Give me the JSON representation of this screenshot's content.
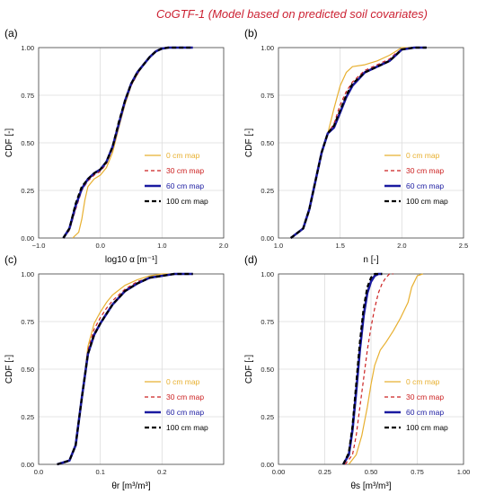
{
  "figure_title": "CoGTF-1 (Model based on predicted soil covariates)",
  "colors": {
    "title": "#cc2233",
    "d0": "#e8b030",
    "d30": "#cc2222",
    "d60": "#1a1aa0",
    "d100": "#000000",
    "grid": "#dcdcdc"
  },
  "legend": [
    "0 cm map",
    "30 cm map",
    "60 cm map",
    "100 cm map"
  ],
  "legend_colors": [
    "#e8b030",
    "#cc2222",
    "#1a1aa0",
    "#000000"
  ],
  "chart_data": [
    {
      "id": "a",
      "panel_label": "(a)",
      "type": "line",
      "xlabel": "log10 α [m⁻¹]",
      "ylabel": "CDF [-]",
      "xlim": [
        -1.0,
        2.0
      ],
      "ylim": [
        0,
        1
      ],
      "xticks": [
        -1.0,
        0.0,
        1.0,
        2.0
      ],
      "xtick_labels": [
        "−1.0",
        "0.0",
        "1.0",
        "2.0"
      ],
      "yticks": [
        0,
        0.25,
        0.5,
        0.75,
        1.0
      ],
      "ytick_labels": [
        "0.00",
        "0.25",
        "0.50",
        "0.75",
        "1.00"
      ],
      "grid": true,
      "legend_position": "bottom-right",
      "series": [
        {
          "name": "0 cm map",
          "x": [
            -0.45,
            -0.35,
            -0.3,
            -0.25,
            -0.2,
            -0.1,
            0.0,
            0.1,
            0.2,
            0.3,
            0.4,
            0.5,
            0.6,
            0.7,
            0.8,
            0.9,
            1.0,
            1.1,
            1.2,
            1.5
          ],
          "y": [
            0,
            0.03,
            0.1,
            0.2,
            0.27,
            0.31,
            0.33,
            0.37,
            0.45,
            0.58,
            0.7,
            0.8,
            0.86,
            0.91,
            0.95,
            0.98,
            0.995,
            1,
            1,
            1
          ]
        },
        {
          "name": "30 cm map",
          "x": [
            -0.6,
            -0.5,
            -0.4,
            -0.3,
            -0.2,
            -0.1,
            0.0,
            0.1,
            0.2,
            0.3,
            0.4,
            0.5,
            0.6,
            0.7,
            0.8,
            0.9,
            1.0,
            1.1,
            1.2,
            1.5
          ],
          "y": [
            0,
            0.04,
            0.15,
            0.25,
            0.3,
            0.33,
            0.35,
            0.39,
            0.47,
            0.6,
            0.71,
            0.8,
            0.86,
            0.91,
            0.95,
            0.98,
            0.995,
            1,
            1,
            1
          ]
        },
        {
          "name": "60 cm map",
          "x": [
            -0.6,
            -0.5,
            -0.4,
            -0.3,
            -0.2,
            -0.1,
            0.0,
            0.1,
            0.2,
            0.3,
            0.4,
            0.5,
            0.6,
            0.7,
            0.8,
            0.9,
            1.0,
            1.1,
            1.2,
            1.5
          ],
          "y": [
            0,
            0.05,
            0.17,
            0.26,
            0.31,
            0.34,
            0.36,
            0.4,
            0.48,
            0.6,
            0.72,
            0.81,
            0.87,
            0.91,
            0.95,
            0.98,
            0.995,
            1,
            1,
            1
          ]
        },
        {
          "name": "100 cm map",
          "x": [
            -0.6,
            -0.5,
            -0.4,
            -0.3,
            -0.2,
            -0.1,
            0.0,
            0.1,
            0.2,
            0.3,
            0.4,
            0.5,
            0.6,
            0.7,
            0.8,
            0.9,
            1.0,
            1.1,
            1.2,
            1.5
          ],
          "y": [
            0,
            0.05,
            0.18,
            0.27,
            0.31,
            0.34,
            0.36,
            0.4,
            0.48,
            0.61,
            0.72,
            0.81,
            0.87,
            0.91,
            0.95,
            0.98,
            0.995,
            1,
            1,
            1
          ]
        }
      ]
    },
    {
      "id": "b",
      "panel_label": "(b)",
      "type": "line",
      "xlabel": "n [-]",
      "ylabel": "CDF [-]",
      "xlim": [
        1.0,
        2.5
      ],
      "ylim": [
        0,
        1
      ],
      "xticks": [
        1.0,
        1.5,
        2.0,
        2.5
      ],
      "xtick_labels": [
        "1.0",
        "1.5",
        "2.0",
        "2.5"
      ],
      "yticks": [
        0,
        0.25,
        0.5,
        0.75,
        1.0
      ],
      "ytick_labels": [
        "0.00",
        "0.25",
        "0.50",
        "0.75",
        "1.00"
      ],
      "grid": true,
      "legend_position": "bottom-right",
      "series": [
        {
          "name": "0 cm map",
          "x": [
            1.1,
            1.2,
            1.25,
            1.3,
            1.35,
            1.4,
            1.45,
            1.5,
            1.55,
            1.6,
            1.7,
            1.8,
            1.9,
            1.95,
            2.0,
            2.1,
            2.2
          ],
          "y": [
            0,
            0.05,
            0.15,
            0.3,
            0.45,
            0.55,
            0.68,
            0.8,
            0.87,
            0.9,
            0.91,
            0.93,
            0.96,
            0.98,
            1,
            1,
            1
          ]
        },
        {
          "name": "30 cm map",
          "x": [
            1.1,
            1.2,
            1.25,
            1.3,
            1.35,
            1.4,
            1.45,
            1.5,
            1.55,
            1.6,
            1.7,
            1.8,
            1.9,
            1.95,
            2.0,
            2.1,
            2.2
          ],
          "y": [
            0,
            0.05,
            0.15,
            0.3,
            0.45,
            0.55,
            0.6,
            0.7,
            0.77,
            0.82,
            0.88,
            0.91,
            0.94,
            0.97,
            0.99,
            1,
            1
          ]
        },
        {
          "name": "60 cm map",
          "x": [
            1.1,
            1.2,
            1.25,
            1.3,
            1.35,
            1.4,
            1.45,
            1.5,
            1.55,
            1.6,
            1.7,
            1.8,
            1.9,
            1.95,
            2.0,
            2.1,
            2.2
          ],
          "y": [
            0,
            0.05,
            0.15,
            0.3,
            0.45,
            0.55,
            0.58,
            0.66,
            0.74,
            0.8,
            0.87,
            0.9,
            0.93,
            0.96,
            0.99,
            1,
            1
          ]
        },
        {
          "name": "100 cm map",
          "x": [
            1.1,
            1.2,
            1.25,
            1.3,
            1.35,
            1.4,
            1.45,
            1.5,
            1.55,
            1.6,
            1.7,
            1.8,
            1.9,
            1.95,
            2.0,
            2.1,
            2.2
          ],
          "y": [
            0,
            0.05,
            0.15,
            0.3,
            0.45,
            0.55,
            0.59,
            0.67,
            0.75,
            0.81,
            0.87,
            0.9,
            0.93,
            0.96,
            0.99,
            1,
            1
          ]
        }
      ]
    },
    {
      "id": "c",
      "panel_label": "(c)",
      "type": "line",
      "xlabel": "θr [m³/m³]",
      "ylabel": "CDF [-]",
      "xlim": [
        0.0,
        0.3
      ],
      "ylim": [
        0,
        1
      ],
      "xticks": [
        0.0,
        0.1,
        0.2
      ],
      "xtick_labels": [
        "0.0",
        "0.1",
        "0.2"
      ],
      "yticks": [
        0,
        0.25,
        0.5,
        0.75,
        1.0
      ],
      "ytick_labels": [
        "0.00",
        "0.25",
        "0.50",
        "0.75",
        "1.00"
      ],
      "grid": true,
      "legend_position": "bottom-right",
      "series": [
        {
          "name": "0 cm map",
          "x": [
            0.03,
            0.05,
            0.06,
            0.07,
            0.08,
            0.09,
            0.1,
            0.11,
            0.12,
            0.14,
            0.16,
            0.18,
            0.2,
            0.22,
            0.25
          ],
          "y": [
            0,
            0.02,
            0.1,
            0.35,
            0.62,
            0.74,
            0.8,
            0.85,
            0.89,
            0.94,
            0.97,
            0.99,
            1,
            1,
            1
          ]
        },
        {
          "name": "30 cm map",
          "x": [
            0.03,
            0.05,
            0.06,
            0.07,
            0.08,
            0.09,
            0.1,
            0.11,
            0.12,
            0.14,
            0.16,
            0.18,
            0.2,
            0.22,
            0.25
          ],
          "y": [
            0,
            0.02,
            0.1,
            0.35,
            0.6,
            0.71,
            0.77,
            0.82,
            0.86,
            0.92,
            0.96,
            0.98,
            0.99,
            1,
            1
          ]
        },
        {
          "name": "60 cm map",
          "x": [
            0.03,
            0.05,
            0.06,
            0.07,
            0.08,
            0.09,
            0.1,
            0.11,
            0.12,
            0.14,
            0.16,
            0.18,
            0.2,
            0.22,
            0.25
          ],
          "y": [
            0,
            0.02,
            0.1,
            0.35,
            0.58,
            0.68,
            0.74,
            0.79,
            0.84,
            0.91,
            0.95,
            0.98,
            0.99,
            1,
            1
          ]
        },
        {
          "name": "100 cm map",
          "x": [
            0.03,
            0.05,
            0.06,
            0.07,
            0.08,
            0.09,
            0.1,
            0.11,
            0.12,
            0.14,
            0.16,
            0.18,
            0.2,
            0.22,
            0.25
          ],
          "y": [
            0,
            0.02,
            0.1,
            0.35,
            0.58,
            0.68,
            0.74,
            0.79,
            0.84,
            0.91,
            0.95,
            0.98,
            0.99,
            1,
            1
          ]
        }
      ]
    },
    {
      "id": "d",
      "panel_label": "(d)",
      "type": "line",
      "xlabel": "θs [m³/m³]",
      "ylabel": "CDF [-]",
      "xlim": [
        0.0,
        1.0
      ],
      "ylim": [
        0,
        1
      ],
      "xticks": [
        0.0,
        0.25,
        0.5,
        0.75,
        1.0
      ],
      "xtick_labels": [
        "0.00",
        "0.25",
        "0.50",
        "0.75",
        "1.00"
      ],
      "yticks": [
        0,
        0.25,
        0.5,
        0.75,
        1.0
      ],
      "ytick_labels": [
        "0.00",
        "0.25",
        "0.50",
        "0.75",
        "1.00"
      ],
      "grid": true,
      "legend_position": "bottom-right",
      "series": [
        {
          "name": "0 cm map",
          "x": [
            0.38,
            0.42,
            0.45,
            0.48,
            0.5,
            0.52,
            0.55,
            0.58,
            0.62,
            0.66,
            0.7,
            0.72,
            0.75,
            0.78
          ],
          "y": [
            0,
            0.05,
            0.15,
            0.3,
            0.42,
            0.52,
            0.6,
            0.64,
            0.7,
            0.77,
            0.85,
            0.93,
            0.99,
            1
          ]
        },
        {
          "name": "30 cm map",
          "x": [
            0.36,
            0.4,
            0.42,
            0.44,
            0.46,
            0.48,
            0.5,
            0.52,
            0.54,
            0.56,
            0.58,
            0.6,
            0.62
          ],
          "y": [
            0,
            0.05,
            0.15,
            0.3,
            0.45,
            0.6,
            0.72,
            0.82,
            0.9,
            0.95,
            0.98,
            1,
            1
          ]
        },
        {
          "name": "60 cm map",
          "x": [
            0.35,
            0.38,
            0.4,
            0.42,
            0.44,
            0.46,
            0.48,
            0.5,
            0.52,
            0.54,
            0.56
          ],
          "y": [
            0,
            0.05,
            0.18,
            0.38,
            0.6,
            0.78,
            0.9,
            0.96,
            0.99,
            1,
            1
          ]
        },
        {
          "name": "100 cm map",
          "x": [
            0.35,
            0.38,
            0.4,
            0.42,
            0.44,
            0.46,
            0.48,
            0.5,
            0.52,
            0.54,
            0.56
          ],
          "y": [
            0,
            0.06,
            0.2,
            0.42,
            0.64,
            0.82,
            0.93,
            0.98,
            1,
            1,
            1
          ]
        }
      ]
    }
  ]
}
